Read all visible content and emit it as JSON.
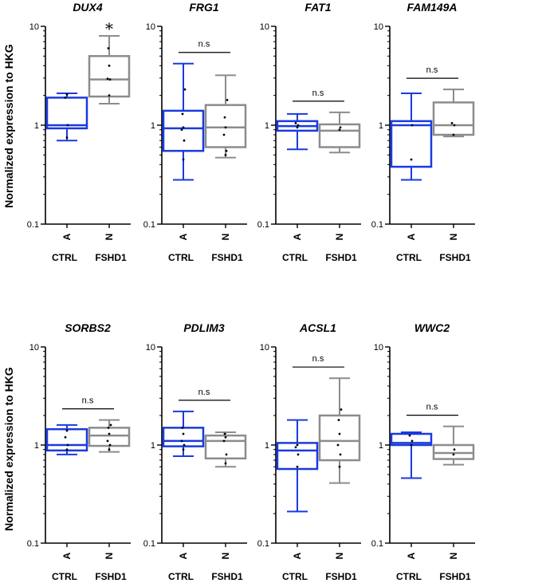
{
  "figure": {
    "ylabel": "Normalized expression to HKG",
    "scale": "log10",
    "ylim": [
      0.1,
      10
    ],
    "ytick_labels": [
      "10",
      "1",
      "0.1"
    ],
    "group_labels": [
      "CTRL",
      "FSHD1"
    ],
    "colors": {
      "CTRL": "#1a3ae0",
      "FSHD1": "#8c8c8c",
      "points": "#000000",
      "bracket": "#000000"
    }
  },
  "chart_data": [
    {
      "type": "box",
      "title": "DUX4",
      "categories": [
        "A",
        "N"
      ],
      "groups": [
        "CTRL",
        "FSHD1"
      ],
      "ylim": [
        0.1,
        10
      ],
      "significance": "*",
      "series": [
        {
          "name": "CTRL",
          "min": 0.7,
          "q1": 0.93,
          "median": 1.0,
          "q3": 1.9,
          "max": 2.1,
          "points": [
            0.75,
            1.0,
            1.9,
            2.05
          ]
        },
        {
          "name": "FSHD1",
          "min": 1.65,
          "q1": 1.95,
          "median": 2.9,
          "q3": 5.0,
          "max": 8.0,
          "points": [
            2.0,
            2.9,
            2.95,
            4.0,
            6.0
          ]
        }
      ]
    },
    {
      "type": "box",
      "title": "FRG1",
      "categories": [
        "A",
        "N"
      ],
      "groups": [
        "CTRL",
        "FSHD1"
      ],
      "ylim": [
        0.1,
        10
      ],
      "significance": "n.s",
      "series": [
        {
          "name": "CTRL",
          "min": 0.28,
          "q1": 0.55,
          "median": 0.93,
          "q3": 1.4,
          "max": 4.2,
          "points": [
            0.45,
            0.7,
            0.9,
            0.95,
            1.3,
            2.3
          ]
        },
        {
          "name": "FSHD1",
          "min": 0.47,
          "q1": 0.6,
          "median": 0.95,
          "q3": 1.6,
          "max": 3.2,
          "points": [
            0.5,
            0.55,
            0.8,
            0.95,
            1.2,
            1.8
          ]
        }
      ]
    },
    {
      "type": "box",
      "title": "FAT1",
      "categories": [
        "A",
        "N"
      ],
      "groups": [
        "CTRL",
        "FSHD1"
      ],
      "ylim": [
        0.1,
        10
      ],
      "significance": "n.s",
      "series": [
        {
          "name": "CTRL",
          "min": 0.57,
          "q1": 0.88,
          "median": 0.98,
          "q3": 1.1,
          "max": 1.3,
          "points": [
            0.95,
            1.0,
            1.05
          ]
        },
        {
          "name": "FSHD1",
          "min": 0.53,
          "q1": 0.6,
          "median": 0.88,
          "q3": 1.02,
          "max": 1.35,
          "points": [
            0.9,
            0.95
          ]
        }
      ]
    },
    {
      "type": "box",
      "title": "FAM149A",
      "categories": [
        "A",
        "N"
      ],
      "groups": [
        "CTRL",
        "FSHD1"
      ],
      "ylim": [
        0.1,
        10
      ],
      "significance": "n.s",
      "series": [
        {
          "name": "CTRL",
          "min": 0.28,
          "q1": 0.38,
          "median": 1.0,
          "q3": 1.1,
          "max": 2.1,
          "points": [
            0.45,
            1.0
          ]
        },
        {
          "name": "FSHD1",
          "min": 0.77,
          "q1": 0.8,
          "median": 1.0,
          "q3": 1.7,
          "max": 2.3,
          "points": [
            0.8,
            1.0,
            1.05
          ]
        }
      ]
    },
    {
      "type": "box",
      "title": "SORBS2",
      "categories": [
        "A",
        "N"
      ],
      "groups": [
        "CTRL",
        "FSHD1"
      ],
      "ylim": [
        0.1,
        10
      ],
      "significance": "n.s",
      "series": [
        {
          "name": "CTRL",
          "min": 0.8,
          "q1": 0.88,
          "median": 1.0,
          "q3": 1.45,
          "max": 1.6,
          "points": [
            0.9,
            1.0,
            1.2,
            1.4
          ]
        },
        {
          "name": "FSHD1",
          "min": 0.85,
          "q1": 0.98,
          "median": 1.25,
          "q3": 1.5,
          "max": 1.8,
          "points": [
            0.9,
            1.0,
            1.1,
            1.3,
            1.5,
            1.6
          ]
        }
      ]
    },
    {
      "type": "box",
      "title": "PDLIM3",
      "categories": [
        "A",
        "N"
      ],
      "groups": [
        "CTRL",
        "FSHD1"
      ],
      "ylim": [
        0.1,
        10
      ],
      "significance": "n.s",
      "series": [
        {
          "name": "CTRL",
          "min": 0.77,
          "q1": 0.97,
          "median": 1.1,
          "q3": 1.5,
          "max": 2.2,
          "points": [
            0.9,
            1.0,
            1.1,
            1.3,
            1.5
          ]
        },
        {
          "name": "FSHD1",
          "min": 0.6,
          "q1": 0.73,
          "median": 1.1,
          "q3": 1.25,
          "max": 1.35,
          "points": [
            0.65,
            0.8,
            1.1,
            1.2,
            1.3
          ]
        }
      ]
    },
    {
      "type": "box",
      "title": "ACSL1",
      "categories": [
        "A",
        "N"
      ],
      "groups": [
        "CTRL",
        "FSHD1"
      ],
      "ylim": [
        0.1,
        10
      ],
      "significance": "n.s",
      "series": [
        {
          "name": "CTRL",
          "min": 0.21,
          "q1": 0.57,
          "median": 0.88,
          "q3": 1.05,
          "max": 1.8,
          "points": [
            0.6,
            0.8,
            0.95,
            1.0
          ]
        },
        {
          "name": "FSHD1",
          "min": 0.41,
          "q1": 0.7,
          "median": 1.1,
          "q3": 2.0,
          "max": 4.8,
          "points": [
            0.6,
            0.8,
            1.0,
            1.3,
            1.8,
            2.3
          ]
        }
      ]
    },
    {
      "type": "box",
      "title": "WWC2",
      "categories": [
        "A",
        "N"
      ],
      "groups": [
        "CTRL",
        "FSHD1"
      ],
      "ylim": [
        0.1,
        10
      ],
      "significance": "n.s",
      "series": [
        {
          "name": "CTRL",
          "min": 0.46,
          "q1": 1.0,
          "median": 1.05,
          "q3": 1.3,
          "max": 1.35,
          "points": [
            1.0,
            1.1,
            1.25
          ]
        },
        {
          "name": "FSHD1",
          "min": 0.63,
          "q1": 0.72,
          "median": 0.83,
          "q3": 1.0,
          "max": 1.55,
          "points": [
            0.8,
            0.9
          ]
        }
      ]
    }
  ]
}
